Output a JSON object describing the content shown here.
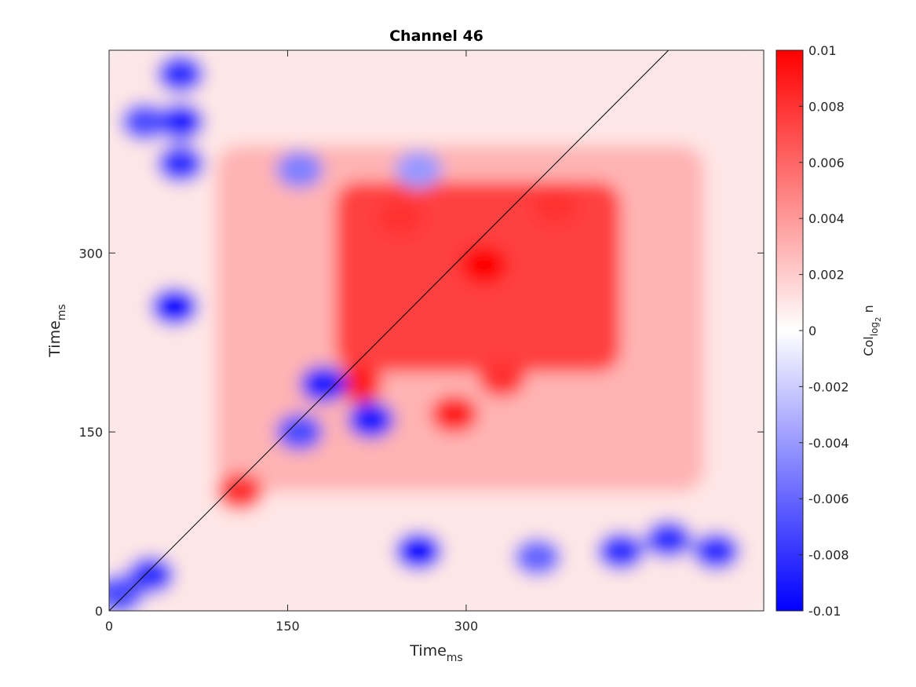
{
  "chart_data": {
    "type": "heatmap",
    "title": "Channel 46",
    "xlabel": "Time",
    "xlabel_sub": "ms",
    "ylabel": "Time",
    "ylabel_sub": "ms",
    "xlim": [
      0,
      550
    ],
    "ylim": [
      0,
      470
    ],
    "x_ticks": [
      0,
      150,
      300
    ],
    "y_ticks": [
      0,
      150,
      300
    ],
    "x_tick_labels": [
      "0",
      "150",
      "300"
    ],
    "y_tick_labels": [
      "0",
      "150",
      "300"
    ],
    "colorbar": {
      "label": "Col",
      "label_sub": "log",
      "label_subsub": "2",
      "label_suffix": " n",
      "clim": [
        -0.01,
        0.01
      ],
      "ticks": [
        0.01,
        0.008,
        0.006,
        0.004,
        0.002,
        0,
        -0.002,
        -0.004,
        -0.006,
        -0.008,
        -0.01
      ],
      "tick_labels": [
        "0.01",
        "0.008",
        "0.006",
        "0.004",
        "0.002",
        "0",
        "-0.002",
        "-0.004",
        "-0.006",
        "-0.008",
        "-0.01"
      ],
      "colormap": [
        "#0000ff",
        "#ffffff",
        "#ff0000"
      ]
    },
    "diagonal_line": true,
    "regions": [
      {
        "x": [
          190,
          430
        ],
        "y": [
          200,
          360
        ],
        "value": 0.0075
      },
      {
        "x": [
          90,
          500
        ],
        "y": [
          100,
          390
        ],
        "value": 0.003
      },
      {
        "x": [
          0,
          550
        ],
        "y": [
          0,
          470
        ],
        "value": 0.001
      }
    ],
    "hotspots": [
      {
        "x": 315,
        "y": 290,
        "value": 0.01
      },
      {
        "x": 210,
        "y": 190,
        "value": 0.009
      },
      {
        "x": 375,
        "y": 340,
        "value": 0.008
      },
      {
        "x": 245,
        "y": 330,
        "value": 0.008
      },
      {
        "x": 110,
        "y": 100,
        "value": 0.008
      },
      {
        "x": 55,
        "y": 255,
        "value": -0.01
      },
      {
        "x": 60,
        "y": 410,
        "value": -0.009
      },
      {
        "x": 60,
        "y": 375,
        "value": -0.008
      },
      {
        "x": 30,
        "y": 410,
        "value": -0.007
      },
      {
        "x": 60,
        "y": 450,
        "value": -0.008
      },
      {
        "x": 260,
        "y": 50,
        "value": -0.01
      },
      {
        "x": 430,
        "y": 50,
        "value": -0.008
      },
      {
        "x": 470,
        "y": 60,
        "value": -0.008
      },
      {
        "x": 510,
        "y": 50,
        "value": -0.008
      },
      {
        "x": 360,
        "y": 45,
        "value": -0.006
      },
      {
        "x": 180,
        "y": 190,
        "value": -0.009
      },
      {
        "x": 220,
        "y": 160,
        "value": -0.009
      },
      {
        "x": 160,
        "y": 150,
        "value": -0.007
      },
      {
        "x": 35,
        "y": 30,
        "value": -0.008
      },
      {
        "x": 10,
        "y": 15,
        "value": -0.007
      },
      {
        "x": 160,
        "y": 370,
        "value": -0.005
      },
      {
        "x": 260,
        "y": 370,
        "value": -0.004
      },
      {
        "x": 290,
        "y": 165,
        "value": 0.009
      },
      {
        "x": 330,
        "y": 195,
        "value": 0.008
      }
    ]
  }
}
